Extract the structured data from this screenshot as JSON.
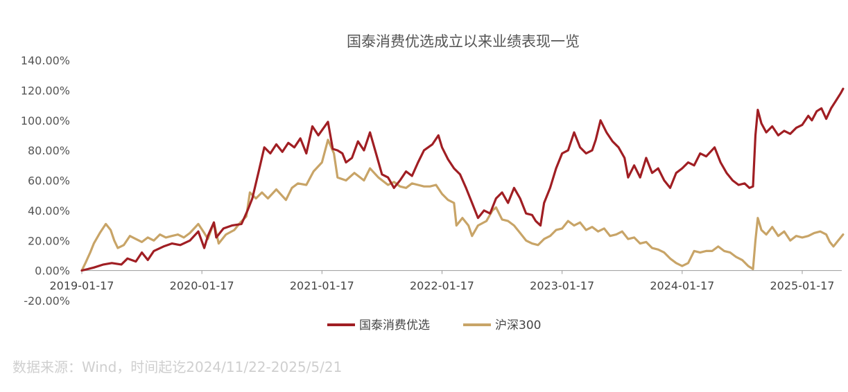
{
  "source_note": "数据来源：Wind，时间起讫2024/11/22-2025/5/21",
  "chart_data": {
    "type": "line",
    "title": "国泰消费优选成立以来业绩表现一览",
    "xlabel": "",
    "ylabel": "",
    "ylim": [
      -20,
      140
    ],
    "y_ticks": [
      "140.00%",
      "120.00%",
      "100.00%",
      "80.00%",
      "60.00%",
      "40.00%",
      "20.00%",
      "0.00%",
      "-20.00%"
    ],
    "y_tick_values": [
      140,
      120,
      100,
      80,
      60,
      40,
      20,
      0,
      -20
    ],
    "x_ticks": [
      "2019-01-17",
      "2020-01-17",
      "2021-01-17",
      "2022-01-17",
      "2023-01-17",
      "2024-01-17",
      "2025-01-17"
    ],
    "x_tick_values": [
      2019.0,
      2020.0,
      2021.0,
      2022.0,
      2023.0,
      2024.0,
      2025.0
    ],
    "xlim": [
      2019.0,
      2025.34
    ],
    "grid": false,
    "legend_position": "bottom",
    "series": [
      {
        "name": "国泰消费优选",
        "color": "#a01e23",
        "points": [
          [
            2019.0,
            0
          ],
          [
            2019.05,
            1
          ],
          [
            2019.1,
            2
          ],
          [
            2019.18,
            4
          ],
          [
            2019.25,
            5
          ],
          [
            2019.33,
            4
          ],
          [
            2019.38,
            8
          ],
          [
            2019.45,
            6
          ],
          [
            2019.5,
            12
          ],
          [
            2019.55,
            7
          ],
          [
            2019.6,
            13
          ],
          [
            2019.68,
            16
          ],
          [
            2019.75,
            18
          ],
          [
            2019.82,
            17
          ],
          [
            2019.9,
            20
          ],
          [
            2019.97,
            26
          ],
          [
            2020.02,
            15
          ],
          [
            2020.05,
            23
          ],
          [
            2020.1,
            32
          ],
          [
            2020.12,
            22
          ],
          [
            2020.18,
            28
          ],
          [
            2020.25,
            30
          ],
          [
            2020.33,
            31
          ],
          [
            2020.38,
            40
          ],
          [
            2020.42,
            48
          ],
          [
            2020.47,
            65
          ],
          [
            2020.52,
            82
          ],
          [
            2020.57,
            78
          ],
          [
            2020.62,
            84
          ],
          [
            2020.67,
            79
          ],
          [
            2020.72,
            85
          ],
          [
            2020.77,
            82
          ],
          [
            2020.82,
            88
          ],
          [
            2020.87,
            78
          ],
          [
            2020.92,
            96
          ],
          [
            2020.97,
            90
          ],
          [
            2021.05,
            99
          ],
          [
            2021.09,
            81
          ],
          [
            2021.13,
            80
          ],
          [
            2021.17,
            78
          ],
          [
            2021.2,
            72
          ],
          [
            2021.25,
            75
          ],
          [
            2021.3,
            86
          ],
          [
            2021.35,
            80
          ],
          [
            2021.4,
            92
          ],
          [
            2021.45,
            78
          ],
          [
            2021.5,
            64
          ],
          [
            2021.55,
            62
          ],
          [
            2021.6,
            55
          ],
          [
            2021.65,
            60
          ],
          [
            2021.7,
            66
          ],
          [
            2021.75,
            63
          ],
          [
            2021.8,
            72
          ],
          [
            2021.85,
            80
          ],
          [
            2021.92,
            84
          ],
          [
            2021.97,
            90
          ],
          [
            2022.0,
            82
          ],
          [
            2022.05,
            74
          ],
          [
            2022.1,
            68
          ],
          [
            2022.15,
            64
          ],
          [
            2022.2,
            55
          ],
          [
            2022.25,
            45
          ],
          [
            2022.3,
            35
          ],
          [
            2022.35,
            40
          ],
          [
            2022.4,
            38
          ],
          [
            2022.45,
            48
          ],
          [
            2022.5,
            52
          ],
          [
            2022.55,
            45
          ],
          [
            2022.6,
            55
          ],
          [
            2022.65,
            48
          ],
          [
            2022.7,
            38
          ],
          [
            2022.75,
            37
          ],
          [
            2022.78,
            33
          ],
          [
            2022.82,
            30
          ],
          [
            2022.85,
            45
          ],
          [
            2022.9,
            55
          ],
          [
            2022.95,
            68
          ],
          [
            2023.0,
            78
          ],
          [
            2023.05,
            80
          ],
          [
            2023.1,
            92
          ],
          [
            2023.15,
            82
          ],
          [
            2023.2,
            78
          ],
          [
            2023.25,
            80
          ],
          [
            2023.28,
            87
          ],
          [
            2023.32,
            100
          ],
          [
            2023.37,
            92
          ],
          [
            2023.42,
            86
          ],
          [
            2023.47,
            82
          ],
          [
            2023.52,
            75
          ],
          [
            2023.55,
            62
          ],
          [
            2023.6,
            70
          ],
          [
            2023.65,
            62
          ],
          [
            2023.7,
            75
          ],
          [
            2023.75,
            65
          ],
          [
            2023.8,
            68
          ],
          [
            2023.85,
            60
          ],
          [
            2023.9,
            55
          ],
          [
            2023.95,
            65
          ],
          [
            2024.0,
            68
          ],
          [
            2024.05,
            72
          ],
          [
            2024.1,
            70
          ],
          [
            2024.15,
            78
          ],
          [
            2024.2,
            76
          ],
          [
            2024.27,
            82
          ],
          [
            2024.32,
            72
          ],
          [
            2024.37,
            65
          ],
          [
            2024.42,
            60
          ],
          [
            2024.47,
            57
          ],
          [
            2024.52,
            58
          ],
          [
            2024.56,
            55
          ],
          [
            2024.59,
            56
          ],
          [
            2024.61,
            90
          ],
          [
            2024.63,
            107
          ],
          [
            2024.66,
            98
          ],
          [
            2024.7,
            92
          ],
          [
            2024.75,
            96
          ],
          [
            2024.8,
            90
          ],
          [
            2024.85,
            93
          ],
          [
            2024.9,
            91
          ],
          [
            2024.95,
            95
          ],
          [
            2025.0,
            97
          ],
          [
            2025.05,
            103
          ],
          [
            2025.08,
            100
          ],
          [
            2025.12,
            106
          ],
          [
            2025.16,
            108
          ],
          [
            2025.2,
            101
          ],
          [
            2025.24,
            108
          ],
          [
            2025.28,
            113
          ],
          [
            2025.32,
            118
          ],
          [
            2025.34,
            121
          ]
        ]
      },
      {
        "name": "沪深300",
        "color": "#c8a467",
        "points": [
          [
            2019.0,
            0
          ],
          [
            2019.03,
            5
          ],
          [
            2019.07,
            12
          ],
          [
            2019.1,
            18
          ],
          [
            2019.15,
            25
          ],
          [
            2019.2,
            31
          ],
          [
            2019.24,
            27
          ],
          [
            2019.27,
            20
          ],
          [
            2019.3,
            15
          ],
          [
            2019.35,
            17
          ],
          [
            2019.4,
            23
          ],
          [
            2019.45,
            21
          ],
          [
            2019.5,
            19
          ],
          [
            2019.55,
            22
          ],
          [
            2019.6,
            20
          ],
          [
            2019.65,
            24
          ],
          [
            2019.7,
            22
          ],
          [
            2019.75,
            23
          ],
          [
            2019.8,
            24
          ],
          [
            2019.85,
            22
          ],
          [
            2019.9,
            25
          ],
          [
            2019.97,
            31
          ],
          [
            2020.02,
            25
          ],
          [
            2020.05,
            21
          ],
          [
            2020.1,
            32
          ],
          [
            2020.14,
            18
          ],
          [
            2020.2,
            24
          ],
          [
            2020.27,
            27
          ],
          [
            2020.32,
            32
          ],
          [
            2020.37,
            36
          ],
          [
            2020.4,
            52
          ],
          [
            2020.45,
            48
          ],
          [
            2020.5,
            52
          ],
          [
            2020.55,
            48
          ],
          [
            2020.62,
            54
          ],
          [
            2020.7,
            47
          ],
          [
            2020.75,
            55
          ],
          [
            2020.8,
            58
          ],
          [
            2020.87,
            57
          ],
          [
            2020.93,
            66
          ],
          [
            2021.0,
            72
          ],
          [
            2021.05,
            87
          ],
          [
            2021.1,
            78
          ],
          [
            2021.13,
            62
          ],
          [
            2021.2,
            60
          ],
          [
            2021.27,
            65
          ],
          [
            2021.35,
            60
          ],
          [
            2021.4,
            68
          ],
          [
            2021.47,
            62
          ],
          [
            2021.55,
            57
          ],
          [
            2021.6,
            59
          ],
          [
            2021.65,
            56
          ],
          [
            2021.7,
            55
          ],
          [
            2021.75,
            58
          ],
          [
            2021.8,
            57
          ],
          [
            2021.85,
            56
          ],
          [
            2021.9,
            56
          ],
          [
            2021.95,
            57
          ],
          [
            2022.0,
            51
          ],
          [
            2022.05,
            47
          ],
          [
            2022.1,
            45
          ],
          [
            2022.12,
            30
          ],
          [
            2022.17,
            35
          ],
          [
            2022.22,
            30
          ],
          [
            2022.25,
            23
          ],
          [
            2022.3,
            30
          ],
          [
            2022.37,
            33
          ],
          [
            2022.42,
            40
          ],
          [
            2022.45,
            42
          ],
          [
            2022.5,
            34
          ],
          [
            2022.55,
            33
          ],
          [
            2022.6,
            30
          ],
          [
            2022.65,
            25
          ],
          [
            2022.7,
            20
          ],
          [
            2022.75,
            18
          ],
          [
            2022.8,
            17
          ],
          [
            2022.85,
            21
          ],
          [
            2022.9,
            23
          ],
          [
            2022.95,
            27
          ],
          [
            2023.0,
            28
          ],
          [
            2023.05,
            33
          ],
          [
            2023.1,
            30
          ],
          [
            2023.15,
            32
          ],
          [
            2023.2,
            27
          ],
          [
            2023.25,
            29
          ],
          [
            2023.3,
            26
          ],
          [
            2023.35,
            28
          ],
          [
            2023.4,
            23
          ],
          [
            2023.45,
            24
          ],
          [
            2023.5,
            26
          ],
          [
            2023.55,
            21
          ],
          [
            2023.6,
            22
          ],
          [
            2023.65,
            18
          ],
          [
            2023.7,
            19
          ],
          [
            2023.75,
            15
          ],
          [
            2023.8,
            14
          ],
          [
            2023.85,
            12
          ],
          [
            2023.9,
            8
          ],
          [
            2023.95,
            5
          ],
          [
            2024.0,
            3
          ],
          [
            2024.05,
            5
          ],
          [
            2024.1,
            13
          ],
          [
            2024.15,
            12
          ],
          [
            2024.2,
            13
          ],
          [
            2024.25,
            13
          ],
          [
            2024.3,
            16
          ],
          [
            2024.35,
            13
          ],
          [
            2024.4,
            12
          ],
          [
            2024.45,
            9
          ],
          [
            2024.5,
            7
          ],
          [
            2024.55,
            3
          ],
          [
            2024.59,
            1
          ],
          [
            2024.61,
            20
          ],
          [
            2024.63,
            35
          ],
          [
            2024.66,
            27
          ],
          [
            2024.7,
            24
          ],
          [
            2024.75,
            29
          ],
          [
            2024.8,
            23
          ],
          [
            2024.85,
            26
          ],
          [
            2024.9,
            20
          ],
          [
            2024.95,
            23
          ],
          [
            2025.0,
            22
          ],
          [
            2025.05,
            23
          ],
          [
            2025.1,
            25
          ],
          [
            2025.15,
            26
          ],
          [
            2025.2,
            24
          ],
          [
            2025.23,
            19
          ],
          [
            2025.26,
            16
          ],
          [
            2025.3,
            20
          ],
          [
            2025.34,
            24
          ]
        ]
      }
    ]
  }
}
